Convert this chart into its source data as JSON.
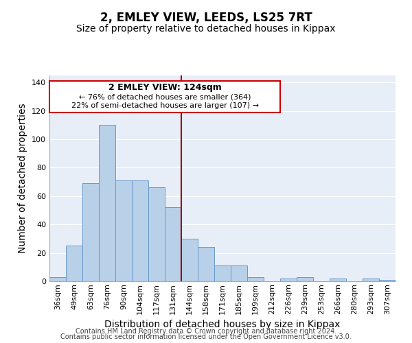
{
  "title": "2, EMLEY VIEW, LEEDS, LS25 7RT",
  "subtitle": "Size of property relative to detached houses in Kippax",
  "xlabel": "Distribution of detached houses by size in Kippax",
  "ylabel": "Number of detached properties",
  "categories": [
    "36sqm",
    "49sqm",
    "63sqm",
    "76sqm",
    "90sqm",
    "104sqm",
    "117sqm",
    "131sqm",
    "144sqm",
    "158sqm",
    "171sqm",
    "185sqm",
    "199sqm",
    "212sqm",
    "226sqm",
    "239sqm",
    "253sqm",
    "266sqm",
    "280sqm",
    "293sqm",
    "307sqm"
  ],
  "values": [
    3,
    25,
    69,
    110,
    71,
    71,
    66,
    52,
    30,
    24,
    11,
    11,
    3,
    0,
    2,
    3,
    0,
    2,
    0,
    2,
    1
  ],
  "bar_color": "#b8d0e8",
  "bar_edge_color": "#6699cc",
  "ylim": [
    0,
    145
  ],
  "yticks": [
    0,
    20,
    40,
    60,
    80,
    100,
    120,
    140
  ],
  "vline_x": 7.5,
  "vline_color": "#990000",
  "annotation_text_line1": "2 EMLEY VIEW: 124sqm",
  "annotation_text_line2": "← 76% of detached houses are smaller (364)",
  "annotation_text_line3": "22% of semi-detached houses are larger (107) →",
  "annotation_box_color": "#cc0000",
  "footer1": "Contains HM Land Registry data © Crown copyright and database right 2024.",
  "footer2": "Contains public sector information licensed under the Open Government Licence v3.0.",
  "background_color": "#e8eef8",
  "title_fontsize": 12,
  "subtitle_fontsize": 10,
  "label_fontsize": 10,
  "tick_fontsize": 8,
  "footer_fontsize": 7
}
